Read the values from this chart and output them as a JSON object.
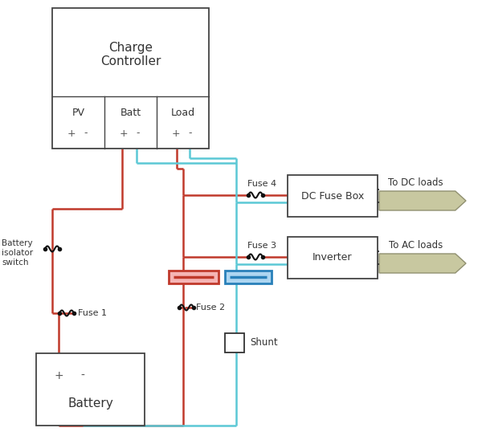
{
  "bg_color": "#ffffff",
  "red": "#c0392b",
  "blue": "#5bc8d5",
  "dark": "#333333",
  "box_edge": "#444444",
  "arrow_fill": "#c8c8a0",
  "arrow_edge": "#909070",
  "busbar_red_edge": "#c0392b",
  "busbar_red_fill": "#f5b5b5",
  "busbar_blue_edge": "#2980b9",
  "busbar_blue_fill": "#aed6f1",
  "fuse_color": "#111111",
  "charge_controller_label": "Charge\nController",
  "battery_label": "Battery",
  "dc_fuse_box_label": "DC Fuse Box",
  "inverter_label": "Inverter",
  "fuse1_label": "Fuse 1",
  "fuse2_label": "Fuse 2",
  "fuse3_label": "Fuse 3",
  "fuse4_label": "Fuse 4",
  "shunt_label": "Shunt",
  "batt_isolator_label": "Battery\nisolator\nswitch",
  "to_dc_loads_label": "To DC loads",
  "to_ac_loads_label": "To AC loads",
  "col_labels": [
    "PV",
    "Batt",
    "Load"
  ]
}
